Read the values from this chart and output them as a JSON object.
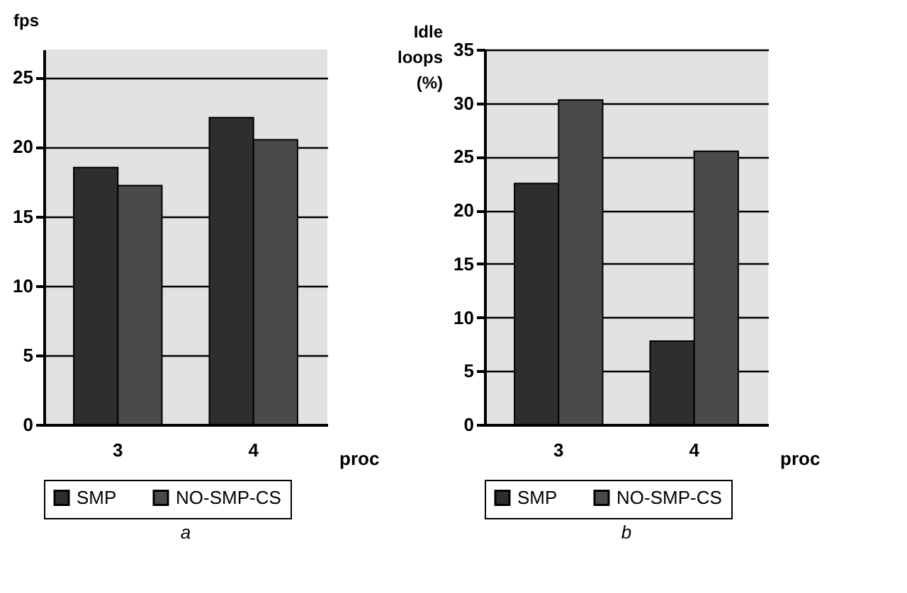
{
  "chart_data": [
    {
      "type": "bar",
      "categories": [
        "3",
        "4"
      ],
      "series": [
        {
          "name": "SMP",
          "color": "#2e2e2e",
          "values": [
            18.5,
            22.1
          ]
        },
        {
          "name": "NO-SMP-CS",
          "color": "#4a4a4a",
          "values": [
            17.2,
            20.5
          ]
        }
      ],
      "ylim": [
        0,
        27
      ],
      "yticks": [
        0,
        5,
        10,
        15,
        20,
        25
      ],
      "ylabel": "fps",
      "xlabel": "proc",
      "grid": "y",
      "legend": "bottom",
      "annotations": [
        "a"
      ]
    },
    {
      "type": "bar",
      "categories": [
        "3",
        "4"
      ],
      "series": [
        {
          "name": "SMP",
          "color": "#2e2e2e",
          "values": [
            22.5,
            7.8
          ]
        },
        {
          "name": "NO-SMP-CS",
          "color": "#4a4a4a",
          "values": [
            30.3,
            25.5
          ]
        }
      ],
      "ylim": [
        0,
        35
      ],
      "yticks": [
        0,
        5,
        10,
        15,
        20,
        25,
        30,
        35
      ],
      "ylabel": "Idle loops (%)",
      "xlabel": "proc",
      "grid": "y",
      "legend": "bottom",
      "annotations": [
        "b"
      ]
    }
  ]
}
